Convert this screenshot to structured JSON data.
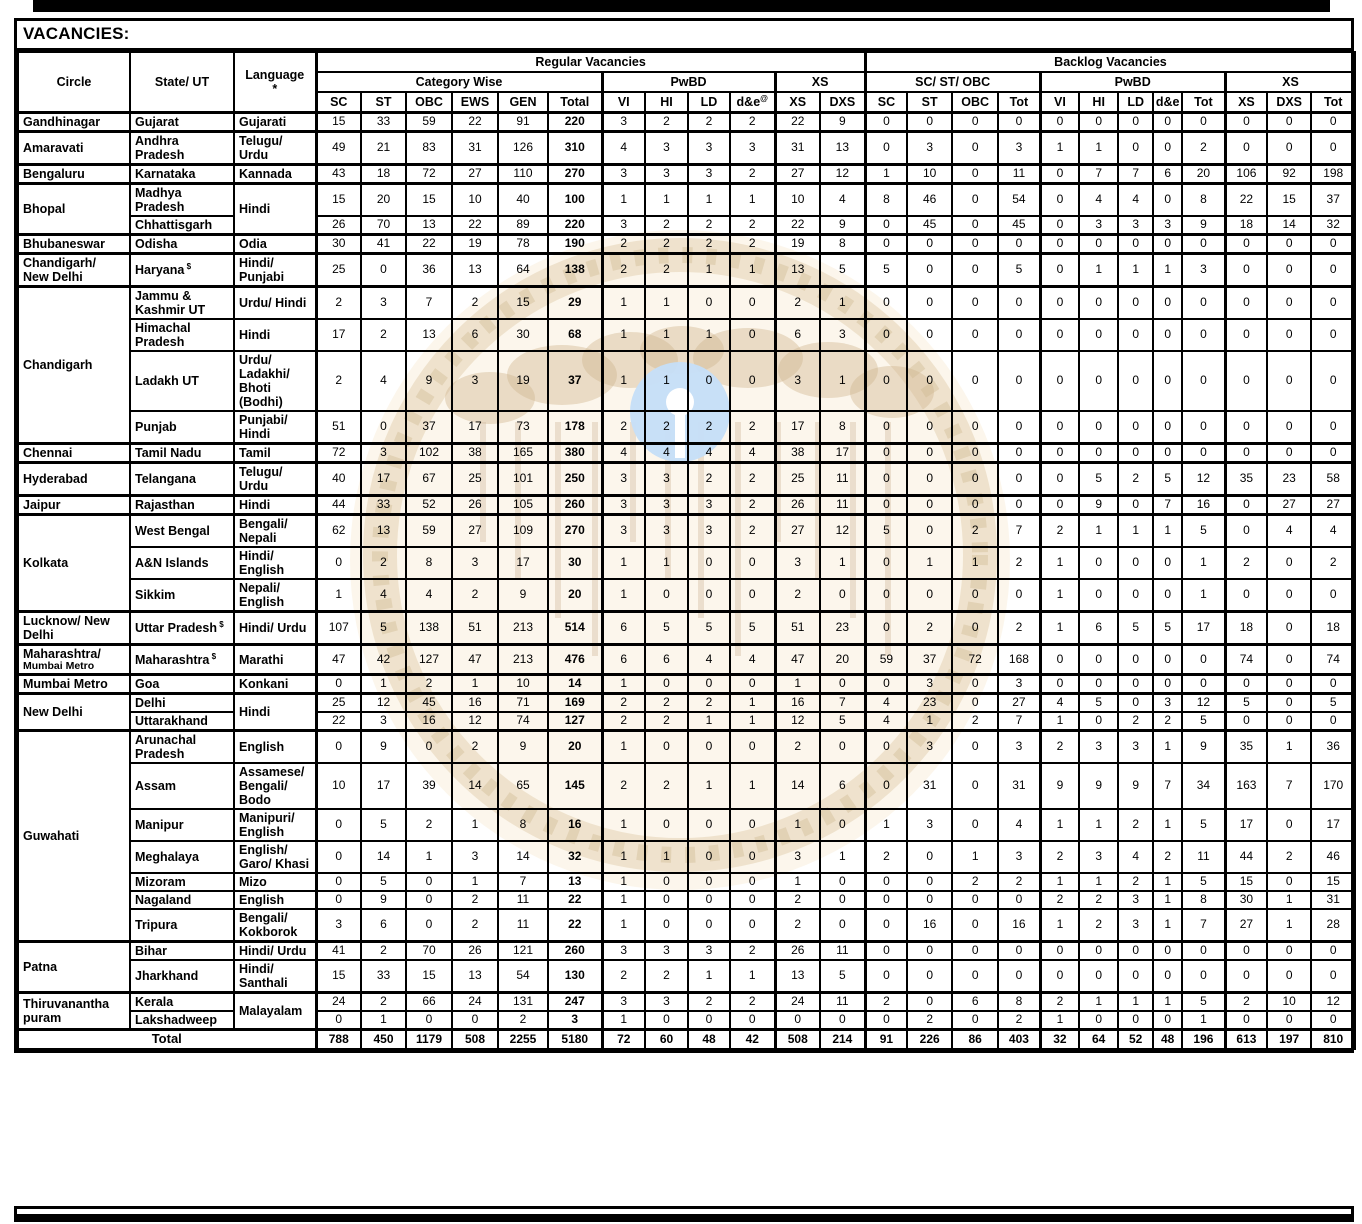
{
  "title": "VACANCIES:",
  "watermark": {
    "name": "state-bank-logo",
    "cream": "#f7ecd4",
    "ring": "#d9bf92",
    "ring_dash": "#b89a66",
    "tree": "#c9a97c",
    "trunk": "#cbb191",
    "blue_circle": "#bcd9f7"
  },
  "table": {
    "header": {
      "circle": "Circle",
      "state": "State/ UT",
      "language": "Language",
      "language_note": "*",
      "regular": "Regular Vacancies",
      "backlog": "Backlog Vacancies",
      "category_wise": "Category Wise",
      "pwbd": "PwBD",
      "xs": "XS",
      "sc_st_obc": "SC/ ST/ OBC",
      "reg_cols": [
        "SC",
        "ST",
        "OBC",
        "EWS",
        "GEN",
        "Total",
        "VI",
        "HI",
        "LD",
        {
          "t": "d&e",
          "sup": "@"
        },
        "XS",
        "DXS"
      ],
      "bk_cols": [
        "SC",
        "ST",
        "OBC",
        "Tot",
        "VI",
        "HI",
        "LD",
        "d&e",
        "Tot",
        "XS",
        "DXS",
        "Tot"
      ]
    },
    "rows": [
      {
        "c": "Gandhinagar",
        "s": "Gujarat",
        "l": "Gujarati",
        "grp": true,
        "reg": [
          15,
          33,
          59,
          22,
          91,
          220,
          3,
          2,
          2,
          2,
          22,
          9
        ],
        "bk": [
          0,
          0,
          0,
          0,
          0,
          0,
          0,
          0,
          0,
          0,
          0,
          0
        ]
      },
      {
        "c": "Amaravati",
        "s": "Andhra Pradesh",
        "l": "Telugu/ Urdu",
        "grp": true,
        "reg": [
          49,
          21,
          83,
          31,
          126,
          310,
          4,
          3,
          3,
          3,
          31,
          13
        ],
        "bk": [
          0,
          3,
          0,
          3,
          1,
          1,
          0,
          0,
          2,
          0,
          0,
          0
        ]
      },
      {
        "c": "Bengaluru",
        "s": "Karnataka",
        "l": "Kannada",
        "grp": true,
        "reg": [
          43,
          18,
          72,
          27,
          110,
          270,
          3,
          3,
          3,
          2,
          27,
          12
        ],
        "bk": [
          1,
          10,
          0,
          11,
          0,
          7,
          7,
          6,
          20,
          106,
          92,
          198
        ]
      },
      {
        "c": "Bhopal",
        "cs": 2,
        "s": "Madhya Pradesh",
        "l": "Hindi",
        "ls": 2,
        "grp": true,
        "reg": [
          15,
          20,
          15,
          10,
          40,
          100,
          1,
          1,
          1,
          1,
          10,
          4
        ],
        "bk": [
          8,
          46,
          0,
          54,
          0,
          4,
          4,
          0,
          8,
          22,
          15,
          37
        ]
      },
      {
        "s": "Chhattisgarh",
        "reg": [
          26,
          70,
          13,
          22,
          89,
          220,
          3,
          2,
          2,
          2,
          22,
          9
        ],
        "bk": [
          0,
          45,
          0,
          45,
          0,
          3,
          3,
          3,
          9,
          18,
          14,
          32
        ]
      },
      {
        "c": "Bhubaneswar",
        "s": "Odisha",
        "l": "Odia",
        "grp": true,
        "reg": [
          30,
          41,
          22,
          19,
          78,
          190,
          2,
          2,
          2,
          2,
          19,
          8
        ],
        "bk": [
          0,
          0,
          0,
          0,
          0,
          0,
          0,
          0,
          0,
          0,
          0,
          0
        ]
      },
      {
        "c": "Chandigarh/ New Delhi",
        "s": "Haryana",
        "ssup": "$",
        "l": "Hindi/ Punjabi",
        "grp": true,
        "reg": [
          25,
          0,
          36,
          13,
          64,
          138,
          2,
          2,
          1,
          1,
          13,
          5
        ],
        "bk": [
          5,
          0,
          0,
          5,
          0,
          1,
          1,
          1,
          3,
          0,
          0,
          0
        ]
      },
      {
        "c": "Chandigarh",
        "cs": 4,
        "s": "Jammu & Kashmir UT",
        "l": "Urdu/ Hindi",
        "grp": true,
        "reg": [
          2,
          3,
          7,
          2,
          15,
          29,
          1,
          1,
          0,
          0,
          2,
          1
        ],
        "bk": [
          0,
          0,
          0,
          0,
          0,
          0,
          0,
          0,
          0,
          0,
          0,
          0
        ]
      },
      {
        "s": "Himachal Pradesh",
        "l": "Hindi",
        "reg": [
          17,
          2,
          13,
          6,
          30,
          68,
          1,
          1,
          1,
          0,
          6,
          3
        ],
        "bk": [
          0,
          0,
          0,
          0,
          0,
          0,
          0,
          0,
          0,
          0,
          0,
          0
        ]
      },
      {
        "s": "Ladakh UT",
        "l": "Urdu/ Ladakhi/ Bhoti (Bodhi)",
        "reg": [
          2,
          4,
          9,
          3,
          19,
          37,
          1,
          1,
          0,
          0,
          3,
          1
        ],
        "bk": [
          0,
          0,
          0,
          0,
          0,
          0,
          0,
          0,
          0,
          0,
          0,
          0
        ]
      },
      {
        "s": "Punjab",
        "l": "Punjabi/ Hindi",
        "reg": [
          51,
          0,
          37,
          17,
          73,
          178,
          2,
          2,
          2,
          2,
          17,
          8
        ],
        "bk": [
          0,
          0,
          0,
          0,
          0,
          0,
          0,
          0,
          0,
          0,
          0,
          0
        ]
      },
      {
        "c": "Chennai",
        "s": "Tamil Nadu",
        "l": "Tamil",
        "grp": true,
        "reg": [
          72,
          3,
          102,
          38,
          165,
          380,
          4,
          4,
          4,
          4,
          38,
          17
        ],
        "bk": [
          0,
          0,
          0,
          0,
          0,
          0,
          0,
          0,
          0,
          0,
          0,
          0
        ]
      },
      {
        "c": "Hyderabad",
        "s": "Telangana",
        "l": "Telugu/ Urdu",
        "grp": true,
        "reg": [
          40,
          17,
          67,
          25,
          101,
          250,
          3,
          3,
          2,
          2,
          25,
          11
        ],
        "bk": [
          0,
          0,
          0,
          0,
          0,
          5,
          2,
          5,
          12,
          35,
          23,
          58
        ]
      },
      {
        "c": "Jaipur",
        "s": "Rajasthan",
        "l": "Hindi",
        "grp": true,
        "reg": [
          44,
          33,
          52,
          26,
          105,
          260,
          3,
          3,
          3,
          2,
          26,
          11
        ],
        "bk": [
          0,
          0,
          0,
          0,
          0,
          9,
          0,
          7,
          16,
          0,
          27,
          27
        ]
      },
      {
        "c": "Kolkata",
        "cs": 3,
        "s": "West Bengal",
        "l": "Bengali/ Nepali",
        "grp": true,
        "reg": [
          62,
          13,
          59,
          27,
          109,
          270,
          3,
          3,
          3,
          2,
          27,
          12
        ],
        "bk": [
          5,
          0,
          2,
          7,
          2,
          1,
          1,
          1,
          5,
          0,
          4,
          4
        ]
      },
      {
        "s": "A&N Islands",
        "l": "Hindi/ English",
        "reg": [
          0,
          2,
          8,
          3,
          17,
          30,
          1,
          1,
          0,
          0,
          3,
          1
        ],
        "bk": [
          0,
          1,
          1,
          2,
          1,
          0,
          0,
          0,
          1,
          2,
          0,
          2
        ]
      },
      {
        "s": "Sikkim",
        "l": "Nepali/ English",
        "reg": [
          1,
          4,
          4,
          2,
          9,
          20,
          1,
          0,
          0,
          0,
          2,
          0
        ],
        "bk": [
          0,
          0,
          0,
          0,
          1,
          0,
          0,
          0,
          1,
          0,
          0,
          0
        ]
      },
      {
        "c": "Lucknow/ New Delhi",
        "s": "Uttar Pradesh",
        "ssup": "$",
        "l": "Hindi/ Urdu",
        "grp": true,
        "reg": [
          107,
          5,
          138,
          51,
          213,
          514,
          6,
          5,
          5,
          5,
          51,
          23
        ],
        "bk": [
          0,
          2,
          0,
          2,
          1,
          6,
          5,
          5,
          17,
          18,
          0,
          18
        ]
      },
      {
        "c": "Maharashtra/",
        "c2": "Mumbai Metro",
        "s": "Maharashtra",
        "ssup": "$",
        "l": "Marathi",
        "grp": true,
        "reg": [
          47,
          42,
          127,
          47,
          213,
          476,
          6,
          6,
          4,
          4,
          47,
          20
        ],
        "bk": [
          59,
          37,
          72,
          168,
          0,
          0,
          0,
          0,
          0,
          74,
          0,
          74
        ]
      },
      {
        "c": "Mumbai Metro",
        "s": "Goa",
        "l": "Konkani",
        "grp": true,
        "reg": [
          0,
          1,
          2,
          1,
          10,
          14,
          1,
          0,
          0,
          0,
          1,
          0
        ],
        "bk": [
          0,
          3,
          0,
          3,
          0,
          0,
          0,
          0,
          0,
          0,
          0,
          0
        ]
      },
      {
        "c": "New Delhi",
        "cs": 2,
        "s": "Delhi",
        "l": "Hindi",
        "ls": 2,
        "grp": true,
        "reg": [
          25,
          12,
          45,
          16,
          71,
          169,
          2,
          2,
          2,
          1,
          16,
          7
        ],
        "bk": [
          4,
          23,
          0,
          27,
          4,
          5,
          0,
          3,
          12,
          5,
          0,
          5
        ]
      },
      {
        "s": "Uttarakhand",
        "reg": [
          22,
          3,
          16,
          12,
          74,
          127,
          2,
          2,
          1,
          1,
          12,
          5
        ],
        "bk": [
          4,
          1,
          2,
          7,
          1,
          0,
          2,
          2,
          5,
          0,
          0,
          0
        ]
      },
      {
        "c": "Guwahati",
        "cs": 7,
        "s": "Arunachal Pradesh",
        "l": "English",
        "grp": true,
        "reg": [
          0,
          9,
          0,
          2,
          9,
          20,
          1,
          0,
          0,
          0,
          2,
          0
        ],
        "bk": [
          0,
          3,
          0,
          3,
          2,
          3,
          3,
          1,
          9,
          35,
          1,
          36
        ]
      },
      {
        "s": "Assam",
        "l": "Assamese/ Bengali/ Bodo",
        "reg": [
          10,
          17,
          39,
          14,
          65,
          145,
          2,
          2,
          1,
          1,
          14,
          6
        ],
        "bk": [
          0,
          31,
          0,
          31,
          9,
          9,
          9,
          7,
          34,
          163,
          7,
          170
        ]
      },
      {
        "s": "Manipur",
        "l": "Manipuri/ English",
        "reg": [
          0,
          5,
          2,
          1,
          8,
          16,
          1,
          0,
          0,
          0,
          1,
          0
        ],
        "bk": [
          1,
          3,
          0,
          4,
          1,
          1,
          2,
          1,
          5,
          17,
          0,
          17
        ]
      },
      {
        "s": "Meghalaya",
        "l": "English/ Garo/ Khasi",
        "reg": [
          0,
          14,
          1,
          3,
          14,
          32,
          1,
          1,
          0,
          0,
          3,
          1
        ],
        "bk": [
          2,
          0,
          1,
          3,
          2,
          3,
          4,
          2,
          11,
          44,
          2,
          46
        ]
      },
      {
        "s": "Mizoram",
        "l": "Mizo",
        "reg": [
          0,
          5,
          0,
          1,
          7,
          13,
          1,
          0,
          0,
          0,
          1,
          0
        ],
        "bk": [
          0,
          0,
          2,
          2,
          1,
          1,
          2,
          1,
          5,
          15,
          0,
          15
        ]
      },
      {
        "s": "Nagaland",
        "l": "English",
        "reg": [
          0,
          9,
          0,
          2,
          11,
          22,
          1,
          0,
          0,
          0,
          2,
          0
        ],
        "bk": [
          0,
          0,
          0,
          0,
          2,
          2,
          3,
          1,
          8,
          30,
          1,
          31
        ]
      },
      {
        "s": "Tripura",
        "l": "Bengali/ Kokborok",
        "reg": [
          3,
          6,
          0,
          2,
          11,
          22,
          1,
          0,
          0,
          0,
          2,
          0
        ],
        "bk": [
          0,
          16,
          0,
          16,
          1,
          2,
          3,
          1,
          7,
          27,
          1,
          28
        ]
      },
      {
        "c": "Patna",
        "cs": 2,
        "s": "Bihar",
        "l": "Hindi/ Urdu",
        "grp": true,
        "reg": [
          41,
          2,
          70,
          26,
          121,
          260,
          3,
          3,
          3,
          2,
          26,
          11
        ],
        "bk": [
          0,
          0,
          0,
          0,
          0,
          0,
          0,
          0,
          0,
          0,
          0,
          0
        ]
      },
      {
        "s": "Jharkhand",
        "l": "Hindi/ Santhali",
        "reg": [
          15,
          33,
          15,
          13,
          54,
          130,
          2,
          2,
          1,
          1,
          13,
          5
        ],
        "bk": [
          0,
          0,
          0,
          0,
          0,
          0,
          0,
          0,
          0,
          0,
          0,
          0
        ]
      },
      {
        "c": "Thiruvanantha puram",
        "cs": 2,
        "s": "Kerala",
        "l": "Malayalam",
        "ls": 2,
        "grp": true,
        "reg": [
          24,
          2,
          66,
          24,
          131,
          247,
          3,
          3,
          2,
          2,
          24,
          11
        ],
        "bk": [
          2,
          0,
          6,
          8,
          2,
          1,
          1,
          1,
          5,
          2,
          10,
          12
        ]
      },
      {
        "s": "Lakshadweep",
        "reg": [
          0,
          1,
          0,
          0,
          2,
          3,
          1,
          0,
          0,
          0,
          0,
          0
        ],
        "bk": [
          0,
          2,
          0,
          2,
          1,
          0,
          0,
          0,
          1,
          0,
          0,
          0
        ]
      }
    ],
    "total": {
      "label": "Total",
      "reg": [
        788,
        450,
        1179,
        508,
        2255,
        5180,
        72,
        60,
        48,
        42,
        508,
        214
      ],
      "bk": [
        91,
        226,
        86,
        403,
        32,
        64,
        52,
        48,
        196,
        613,
        197,
        810
      ]
    }
  }
}
